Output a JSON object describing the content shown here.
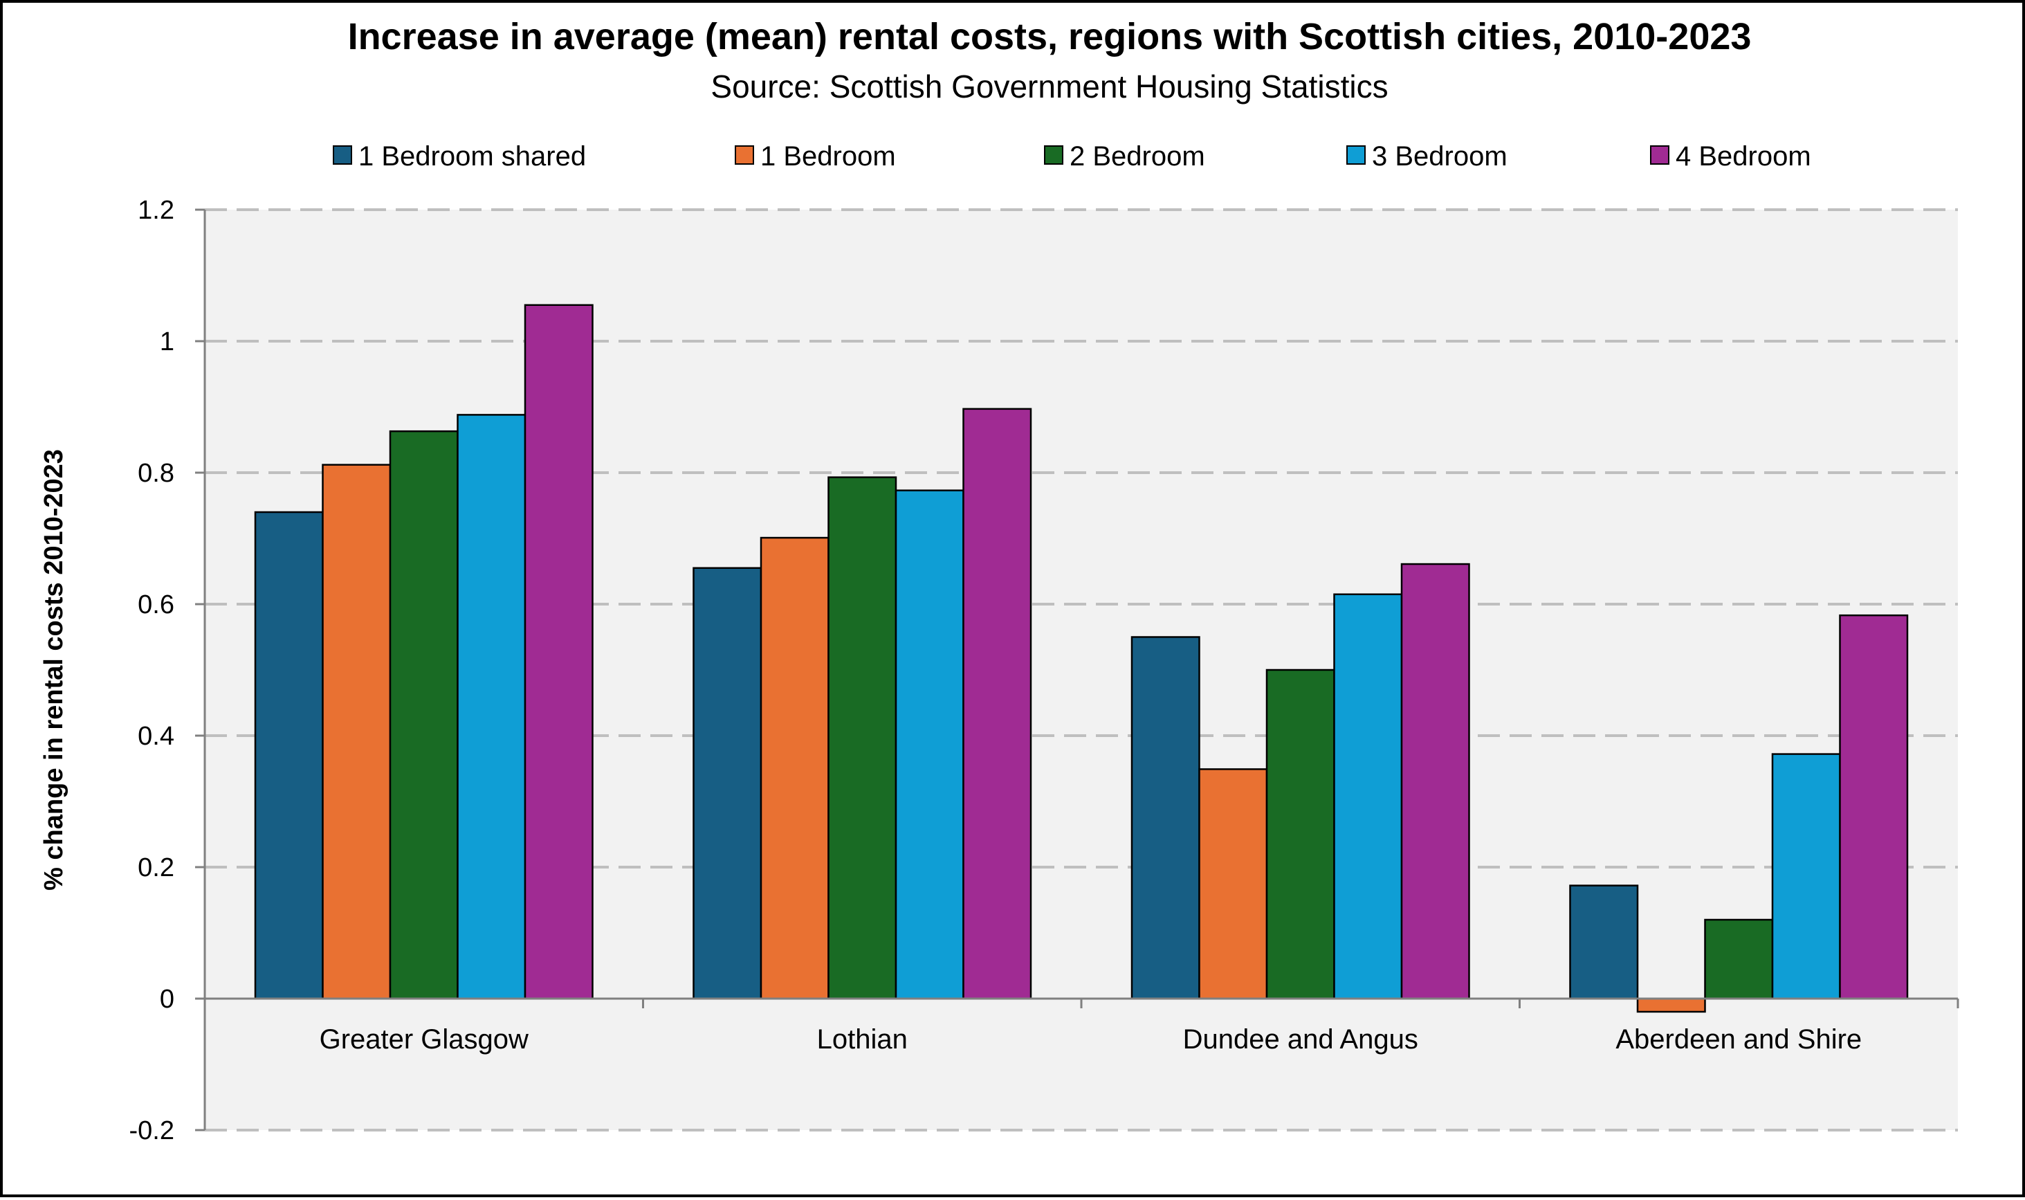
{
  "chart_data": {
    "type": "bar",
    "title": "Increase in average (mean) rental costs, regions with Scottish cities, 2010-2023",
    "subtitle": "Source: Scottish Government Housing Statistics",
    "ylabel": "% change in rental costs 2010-2023",
    "xlabel": "",
    "ylim": [
      -0.2,
      1.2
    ],
    "yticks": [
      -0.2,
      0,
      0.2,
      0.4,
      0.6,
      0.8,
      1,
      1.2
    ],
    "ytick_labels": [
      "-0.2",
      "0",
      "0.2",
      "0.4",
      "0.6",
      "0.8",
      "1",
      "1.2"
    ],
    "grid": "horizontal dashed",
    "legend_position": "top",
    "categories": [
      "Greater Glasgow",
      "Lothian",
      "Dundee and Angus",
      "Aberdeen and Shire"
    ],
    "series": [
      {
        "name": "1 Bedroom shared",
        "color": "#175E84",
        "values": [
          0.74,
          0.655,
          0.55,
          0.172
        ]
      },
      {
        "name": "1 Bedroom",
        "color": "#E97132",
        "values": [
          0.812,
          0.701,
          0.349,
          -0.02
        ]
      },
      {
        "name": "2 Bedroom",
        "color": "#196B24",
        "values": [
          0.863,
          0.793,
          0.5,
          0.12
        ]
      },
      {
        "name": "3 Bedroom",
        "color": "#0F9ED5",
        "values": [
          0.888,
          0.773,
          0.615,
          0.372
        ]
      },
      {
        "name": "4 Bedroom",
        "color": "#A02B93",
        "values": [
          1.055,
          0.897,
          0.661,
          0.583
        ]
      }
    ]
  }
}
